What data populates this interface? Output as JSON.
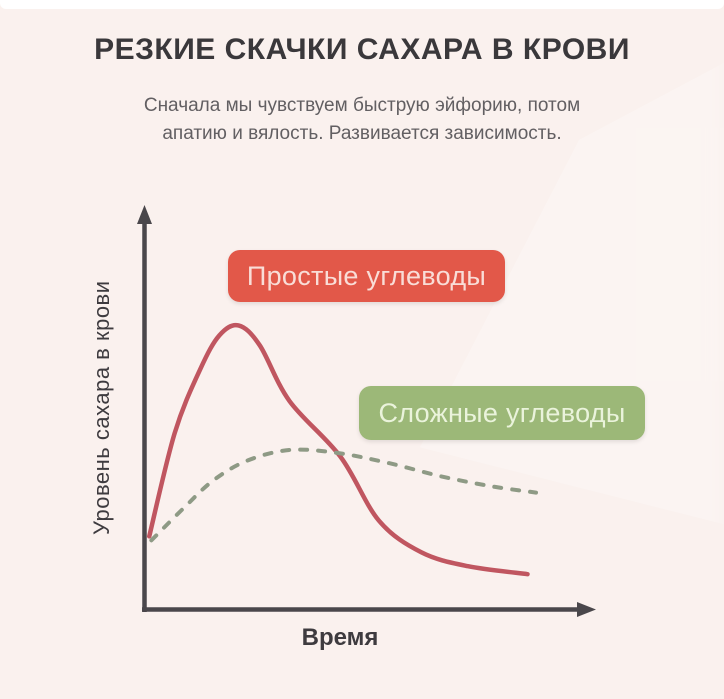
{
  "page": {
    "title": "РЕЗКИЕ СКАЧКИ САХАРА В КРОВИ",
    "subtitle_line1": "Сначала мы чувствуем быструю эйфорию, потом",
    "subtitle_line2": "апатию и вялость. Развивается зависимость."
  },
  "colors": {
    "background": "#faf1ee",
    "title_text": "#3a383b",
    "subtitle_text": "#625f62",
    "axis": "#4a474b",
    "simple_curve": "#c05660",
    "complex_curve": "#8e9a85",
    "simple_badge_bg": "#e25849",
    "simple_badge_text": "#f9ddd7",
    "complex_badge_bg": "#9cb878",
    "complex_badge_text": "#eaf3db"
  },
  "chart_data": {
    "type": "line",
    "title": "РЕЗКИЕ СКАЧКИ САХАРА В КРОВИ",
    "xlabel": "Время",
    "ylabel": "Уровень сахара в крови",
    "x_range": [
      0,
      100
    ],
    "y_range": [
      0,
      100
    ],
    "grid": false,
    "legend_position": "inline-badges",
    "axes_numeric_ticks": "none (conceptual sketch chart)",
    "series": [
      {
        "name": "Простые углеводы",
        "style": "solid",
        "color": "#c05660",
        "stroke_width": 4.5,
        "badge_bg": "#e25849",
        "badge_text_color": "#f9ddd7",
        "points": [
          [
            1,
            18
          ],
          [
            7,
            44
          ],
          [
            13,
            60
          ],
          [
            17.5,
            68.5
          ],
          [
            22,
            71
          ],
          [
            27,
            66
          ],
          [
            34,
            52
          ],
          [
            46,
            38
          ],
          [
            55,
            22
          ],
          [
            65,
            14
          ],
          [
            76,
            10.5
          ],
          [
            90,
            8.5
          ]
        ]
      },
      {
        "name": "Сложные углеводы",
        "style": "dashed",
        "color": "#8e9a85",
        "stroke_width": 4,
        "badge_bg": "#9cb878",
        "badge_text_color": "#eaf3db",
        "points": [
          [
            1.5,
            17
          ],
          [
            9,
            25
          ],
          [
            16,
            32
          ],
          [
            24,
            37
          ],
          [
            34,
            39.7
          ],
          [
            45,
            39
          ],
          [
            57,
            36.5
          ],
          [
            70,
            33
          ],
          [
            82,
            30.5
          ],
          [
            92,
            29
          ]
        ]
      }
    ]
  }
}
